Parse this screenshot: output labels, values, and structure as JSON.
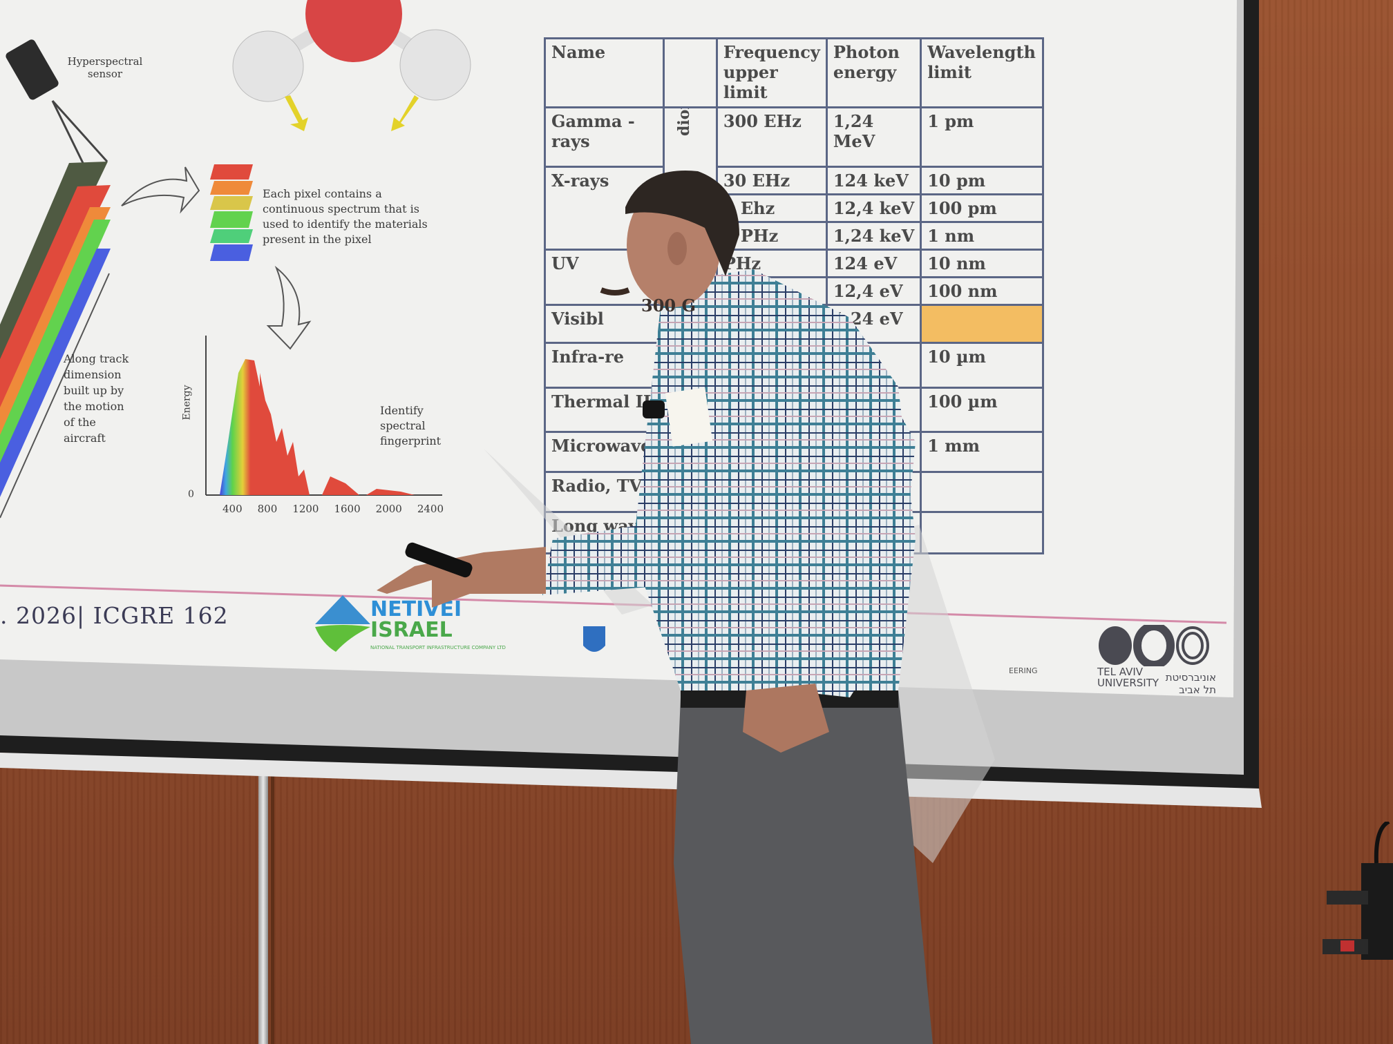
{
  "slide": {
    "sensor_label": "Hyperspectral sensor",
    "pixel_caption": "Each pixel contains a continuous spectrum that is used to identify the materials present in the pixel",
    "track_caption": "Along track dimension built up by the motion of the aircraft",
    "fingerprint_caption": "Identify spectral fingerprint",
    "spectrum": {
      "ylabel": "Energy",
      "y_zero": "0",
      "x_ticks": [
        "400",
        "800",
        "1200",
        "1600",
        "2000",
        "2400"
      ]
    },
    "table": {
      "headers": [
        "Name",
        "",
        "Frequency upper limit",
        "Photon energy",
        "Wavelength limit"
      ],
      "side_label": "dions",
      "rows": [
        {
          "name": "Gamma - rays",
          "freq": "300 EHz",
          "energy": "1,24 MeV",
          "wave": "1 pm"
        },
        {
          "name": "X-rays",
          "freq": "30 EHz",
          "energy": "124 keV",
          "wave": "10 pm"
        },
        {
          "name": "",
          "freq": "3 Ehz",
          "energy": "12,4 keV",
          "wave": "100 pm"
        },
        {
          "name": "",
          "freq": "0 PHz",
          "energy": "1,24 keV",
          "wave": "1 nm"
        },
        {
          "name": "UV",
          "freq": "PHz",
          "energy": "124 eV",
          "wave": "10 nm"
        },
        {
          "name": "",
          "freq": "",
          "energy": "12,4 eV",
          "wave": "100 nm"
        },
        {
          "name": "Visibl",
          "freq": "300 G",
          "energy": "1,24 eV",
          "wave": ""
        },
        {
          "name": "Infra-re",
          "freq": "",
          "energy": "",
          "wave": "10 µm"
        },
        {
          "name": "Thermal IR",
          "freq": "",
          "energy": "",
          "wave": "100 µm"
        },
        {
          "name": "Microwave",
          "freq": "",
          "energy": "",
          "wave": "1 mm"
        },
        {
          "name": "Radio, TV",
          "freq": "",
          "energy": "",
          "wave": ""
        },
        {
          "name": "Long wave",
          "freq": "",
          "energy": "",
          "wave": ""
        }
      ],
      "highlight_color": "#f3bd62"
    },
    "footer": {
      "date_conf": ". 2026| ICGRE  162",
      "netivei_logo": "NETIVEI ISRAEL",
      "netivei_sub": "NATIONAL TRANSPORT INFRASTRUCTURE COMPANY LTD",
      "engineering": "EERING",
      "tau_english": "TEL AVIV UNIVERSITY",
      "tau_hebrew": "אוניברסיטת תל אביב"
    }
  },
  "colors": {
    "wood": "#8a4a2b",
    "slide_bg": "#f1f1ef",
    "table_border": "#5b6685",
    "footer_line": "#d48aa8"
  }
}
